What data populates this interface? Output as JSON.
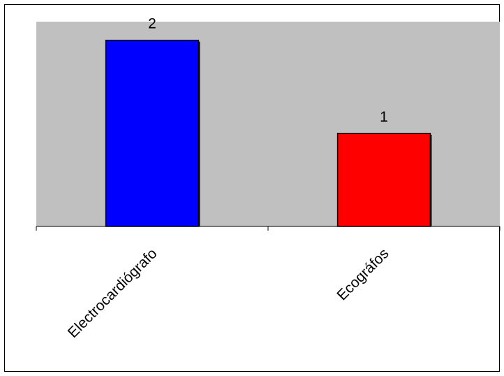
{
  "chart_data": {
    "type": "bar",
    "categories": [
      "Electrocardiógrafo",
      "Ecográfos"
    ],
    "values": [
      2,
      1
    ],
    "colors": [
      "#0000ff",
      "#ff0000"
    ],
    "ylim": [
      0,
      2.2
    ],
    "plot_background": "#c0c0c0",
    "grid": false,
    "legend": "none"
  }
}
